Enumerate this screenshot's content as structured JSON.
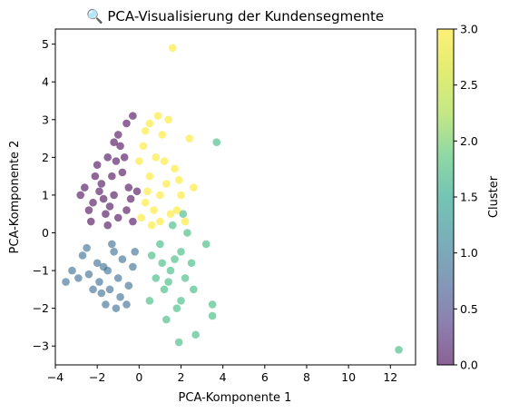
{
  "chart_data": {
    "type": "scatter",
    "title": "🔍 PCA-Visualisierung der Kundensegmente",
    "xlabel": "PCA-Komponente 1",
    "ylabel": "PCA-Komponente 2",
    "xlim": [
      -4,
      13.2
    ],
    "ylim": [
      -3.5,
      5.4
    ],
    "xticks": [
      "−4",
      "−2",
      "0",
      "2",
      "4",
      "6",
      "8",
      "10",
      "12"
    ],
    "yticks": [
      "−3",
      "−2",
      "−1",
      "0",
      "1",
      "2",
      "3",
      "4",
      "5"
    ],
    "grid": false,
    "colormap": "viridis",
    "point_opacity": 0.6,
    "colorbar": {
      "label": "Cluster",
      "range": [
        0.0,
        3.0
      ],
      "ticks": [
        "0.0",
        "0.5",
        "1.0",
        "1.5",
        "2.0",
        "2.5",
        "3.0"
      ]
    },
    "series": [
      {
        "cluster": 0,
        "color": "#440154",
        "points": [
          [
            -1.2,
            1.0
          ],
          [
            -1.8,
            1.3
          ],
          [
            -2.2,
            0.8
          ],
          [
            -1.5,
            2.0
          ],
          [
            -0.8,
            1.6
          ],
          [
            -2.6,
            1.2
          ],
          [
            -1.0,
            0.4
          ],
          [
            -1.6,
            0.5
          ],
          [
            -2.0,
            1.8
          ],
          [
            -0.5,
            1.2
          ],
          [
            -1.3,
            1.5
          ],
          [
            -0.9,
            2.3
          ],
          [
            -1.7,
            0.9
          ],
          [
            -2.4,
            0.6
          ],
          [
            -1.1,
            1.9
          ],
          [
            -0.4,
            0.9
          ],
          [
            -1.9,
            1.1
          ],
          [
            -0.7,
            2.0
          ],
          [
            -1.4,
            0.7
          ],
          [
            -2.1,
            1.5
          ],
          [
            -1.0,
            2.6
          ],
          [
            -0.6,
            2.9
          ],
          [
            -0.3,
            3.1
          ],
          [
            -1.2,
            2.4
          ],
          [
            -2.8,
            1.0
          ],
          [
            -2.3,
            0.3
          ],
          [
            -0.3,
            0.3
          ],
          [
            -1.5,
            0.2
          ],
          [
            -0.1,
            1.1
          ],
          [
            -0.6,
            0.6
          ]
        ]
      },
      {
        "cluster": 1,
        "color": "#31688e",
        "points": [
          [
            -1.5,
            -1.0
          ],
          [
            -2.0,
            -0.8
          ],
          [
            -1.0,
            -1.2
          ],
          [
            -2.4,
            -1.1
          ],
          [
            -1.8,
            -1.6
          ],
          [
            -0.8,
            -0.7
          ],
          [
            -1.2,
            -0.5
          ],
          [
            -2.7,
            -0.6
          ],
          [
            -0.5,
            -1.4
          ],
          [
            -1.6,
            -1.9
          ],
          [
            -2.2,
            -1.5
          ],
          [
            -1.3,
            -0.3
          ],
          [
            -0.9,
            -1.7
          ],
          [
            -2.9,
            -1.2
          ],
          [
            -1.7,
            -0.9
          ],
          [
            -3.2,
            -1.0
          ],
          [
            -3.5,
            -1.3
          ],
          [
            -0.3,
            -0.9
          ],
          [
            -1.1,
            -2.0
          ],
          [
            -2.5,
            -0.4
          ],
          [
            -0.6,
            -1.9
          ],
          [
            -1.9,
            -1.3
          ],
          [
            -1.4,
            -1.5
          ],
          [
            -0.2,
            -0.5
          ]
        ]
      },
      {
        "cluster": 2,
        "color": "#35b779",
        "points": [
          [
            1.5,
            -1.0
          ],
          [
            2.0,
            -0.5
          ],
          [
            1.2,
            -1.5
          ],
          [
            1.8,
            -2.0
          ],
          [
            2.2,
            -1.2
          ],
          [
            1.0,
            -0.3
          ],
          [
            1.6,
            0.2
          ],
          [
            2.5,
            -0.8
          ],
          [
            1.3,
            -2.3
          ],
          [
            2.0,
            -1.8
          ],
          [
            0.8,
            -1.2
          ],
          [
            1.7,
            -0.7
          ],
          [
            2.3,
            0.0
          ],
          [
            0.5,
            -1.8
          ],
          [
            1.1,
            -0.8
          ],
          [
            2.6,
            -1.5
          ],
          [
            3.2,
            -0.3
          ],
          [
            3.5,
            -2.2
          ],
          [
            3.5,
            -1.9
          ],
          [
            2.7,
            -2.7
          ],
          [
            1.9,
            -2.9
          ],
          [
            2.1,
            0.5
          ],
          [
            3.7,
            2.4
          ],
          [
            12.4,
            -3.1
          ],
          [
            1.4,
            -1.3
          ],
          [
            0.6,
            -0.6
          ]
        ]
      },
      {
        "cluster": 3,
        "color": "#fde725",
        "points": [
          [
            1.0,
            1.0
          ],
          [
            0.5,
            1.5
          ],
          [
            1.5,
            0.5
          ],
          [
            0.8,
            2.0
          ],
          [
            1.3,
            1.3
          ],
          [
            0.3,
            0.8
          ],
          [
            2.0,
            1.0
          ],
          [
            1.7,
            1.7
          ],
          [
            0.2,
            2.3
          ],
          [
            0.6,
            0.2
          ],
          [
            1.1,
            2.6
          ],
          [
            0.9,
            3.1
          ],
          [
            1.4,
            3.0
          ],
          [
            2.4,
            2.5
          ],
          [
            1.6,
            4.9
          ],
          [
            0.0,
            1.9
          ],
          [
            2.2,
            0.3
          ],
          [
            0.4,
            1.1
          ],
          [
            1.9,
            1.4
          ],
          [
            0.7,
            0.6
          ],
          [
            1.2,
            1.9
          ],
          [
            0.1,
            0.4
          ],
          [
            1.8,
            0.6
          ],
          [
            0.3,
            2.7
          ],
          [
            1.0,
            0.3
          ],
          [
            2.6,
            1.2
          ],
          [
            0.5,
            2.9
          ]
        ]
      }
    ]
  }
}
